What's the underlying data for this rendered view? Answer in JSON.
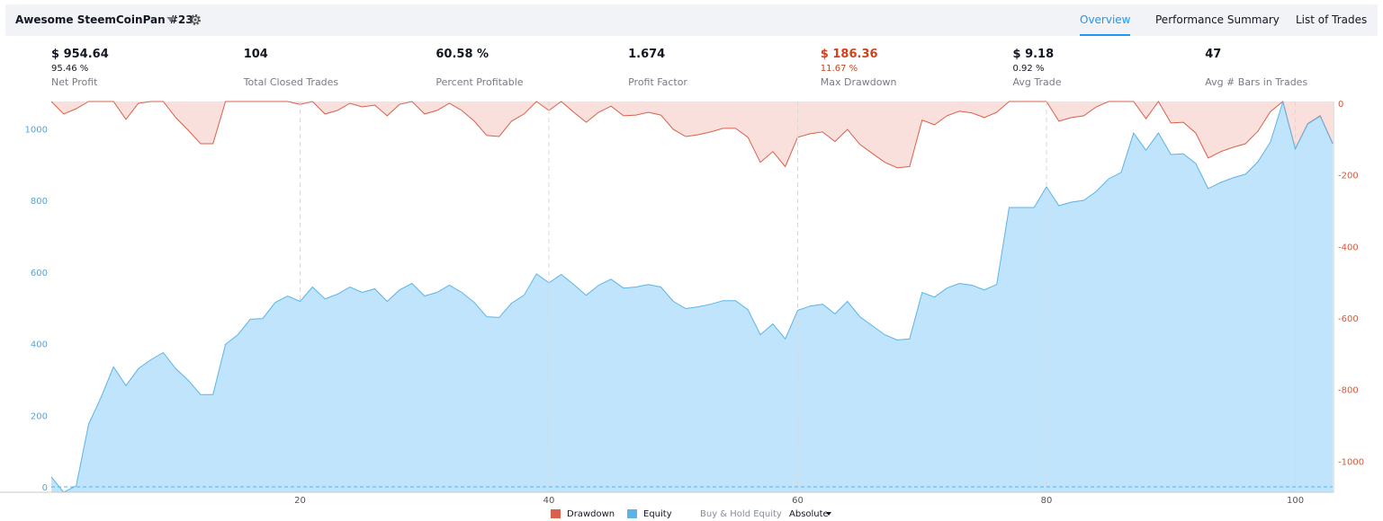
{
  "header": {
    "title": "Awesome SteemCoinPan #23",
    "tabs": [
      "Overview",
      "Performance Summary",
      "List of Trades"
    ]
  },
  "stats": [
    {
      "value": "$ 954.64",
      "sub": "95.46 %",
      "label": "Net Profit"
    },
    {
      "value": "104",
      "label": "Total Closed Trades"
    },
    {
      "value": "60.58 %",
      "label": "Percent Profitable"
    },
    {
      "value": "1.674",
      "label": "Profit Factor"
    },
    {
      "value": "$ 186.36",
      "sub": "11.67 %",
      "label": "Max Drawdown",
      "color": "#d0421b"
    },
    {
      "value": "$ 9.18",
      "sub": "0.92 %",
      "label": "Avg Trade"
    },
    {
      "value": "47",
      "label": "Avg # Bars in Trades"
    }
  ],
  "chart_data": {
    "type": "area",
    "x": [
      0,
      1,
      2,
      3,
      4,
      5,
      6,
      7,
      8,
      9,
      10,
      11,
      12,
      13,
      14,
      15,
      16,
      17,
      18,
      19,
      20,
      21,
      22,
      23,
      24,
      25,
      26,
      27,
      28,
      29,
      30,
      31,
      32,
      33,
      34,
      35,
      36,
      37,
      38,
      39,
      40,
      41,
      42,
      43,
      44,
      45,
      46,
      47,
      48,
      49,
      50,
      51,
      52,
      53,
      54,
      55,
      56,
      57,
      58,
      59,
      60,
      61,
      62,
      63,
      64,
      65,
      66,
      67,
      68,
      69,
      70,
      71,
      72,
      73,
      74,
      75,
      76,
      77,
      78,
      79,
      80,
      81,
      82,
      83,
      84,
      85,
      86,
      87,
      88,
      89,
      90,
      91,
      92,
      93,
      94,
      95,
      96,
      97,
      98,
      99,
      100,
      101,
      102,
      103
    ],
    "series": [
      {
        "name": "Drawdown",
        "color": "#d9604a",
        "fill_color": "#f9e0dc",
        "axis": "y2",
        "values": [
          0,
          -35,
          -20,
          0,
          0,
          0,
          -50,
          -5,
          0,
          0,
          -45,
          -80,
          -118,
          -118,
          0,
          0,
          0,
          0,
          0,
          0,
          -8,
          0,
          -35,
          -25,
          -5,
          -15,
          -10,
          -40,
          -8,
          0,
          -35,
          -25,
          -5,
          -25,
          -55,
          -95,
          -98,
          -55,
          -35,
          0,
          -25,
          0,
          -30,
          -58,
          -30,
          -13,
          -40,
          -38,
          -30,
          -38,
          -78,
          -98,
          -93,
          -85,
          -75,
          -75,
          -100,
          -170,
          -140,
          -182,
          -100,
          -90,
          -85,
          -112,
          -78,
          -120,
          -145,
          -170,
          -185,
          -182,
          -52,
          -65,
          -40,
          -27,
          -32,
          -45,
          -30,
          0,
          0,
          0,
          0,
          -55,
          -45,
          -40,
          -15,
          0,
          0,
          0,
          -48,
          0,
          -60,
          -58,
          -88,
          -158,
          -140,
          -128,
          -118,
          -83,
          -28,
          0,
          -132,
          -62,
          -40,
          -117
        ]
      },
      {
        "name": "Equity",
        "color": "#5ab4e8",
        "fill_color": "#c0e4fb",
        "values": [
          28,
          -15,
          3,
          175,
          250,
          335,
          283,
          330,
          355,
          375,
          330,
          298,
          258,
          258,
          398,
          425,
          468,
          470,
          515,
          533,
          518,
          558,
          525,
          538,
          558,
          543,
          553,
          518,
          550,
          568,
          533,
          543,
          563,
          543,
          515,
          475,
          473,
          513,
          535,
          595,
          570,
          593,
          565,
          535,
          563,
          580,
          555,
          558,
          565,
          558,
          518,
          498,
          503,
          510,
          520,
          520,
          495,
          425,
          455,
          413,
          493,
          505,
          510,
          483,
          518,
          475,
          450,
          425,
          410,
          413,
          543,
          530,
          555,
          568,
          563,
          550,
          565,
          780,
          780,
          780,
          838,
          785,
          795,
          800,
          825,
          860,
          878,
          988,
          940,
          988,
          928,
          930,
          903,
          833,
          850,
          863,
          873,
          908,
          963,
          1075,
          943,
          1013,
          1035,
          958
        ]
      }
    ],
    "buy_hold_label": "Buy & Hold Equity",
    "scale_mode": "Absolute",
    "xlim": [
      0,
      103
    ],
    "xticks": [
      20,
      40,
      60,
      80,
      100
    ],
    "ylim": [
      -15,
      1076
    ],
    "yticks": [
      0,
      200,
      400,
      600,
      800,
      1000
    ],
    "y_color": "#4fa6e0",
    "y2lim": [
      -1092,
      0
    ],
    "y2ticks": [
      0,
      -200,
      -400,
      -600,
      -800,
      -1000
    ],
    "y2_color": "#d25a3e",
    "grid": true
  }
}
